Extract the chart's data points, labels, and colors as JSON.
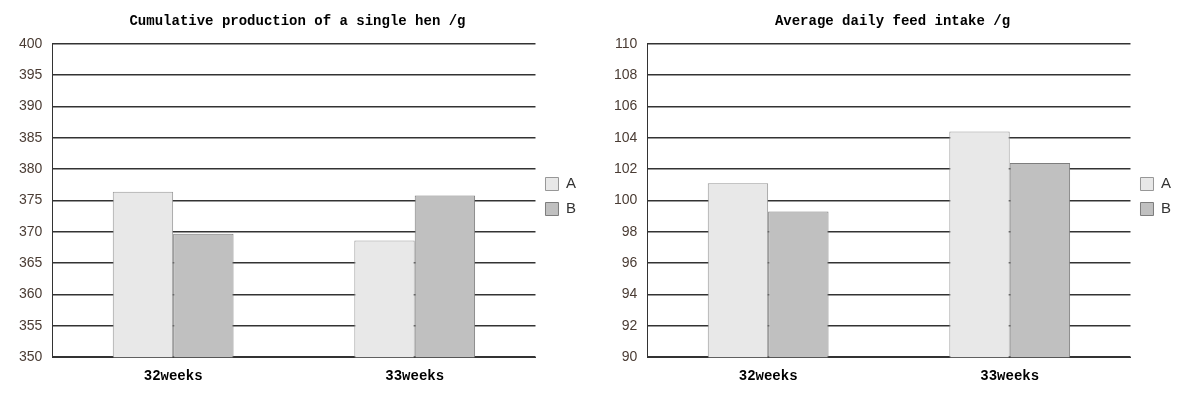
{
  "chart_data": [
    {
      "type": "bar",
      "title": "Cumulative production of a single hen /g",
      "categories": [
        "32weeks",
        "33weeks"
      ],
      "series": [
        {
          "name": "A",
          "color": "#e8e8e8",
          "values": [
            376.4,
            368.6
          ]
        },
        {
          "name": "B",
          "color": "#c0c0c0",
          "values": [
            369.7,
            375.8
          ]
        }
      ],
      "ylim": [
        350,
        400
      ],
      "yticks": [
        350,
        355,
        360,
        365,
        370,
        375,
        380,
        385,
        390,
        395,
        400
      ],
      "grid": "y",
      "legend": "right"
    },
    {
      "type": "bar",
      "title": "Average daily feed intake /g",
      "categories": [
        "32weeks",
        "33weeks"
      ],
      "series": [
        {
          "name": "A",
          "color": "#e8e8e8",
          "values": [
            101.1,
            104.4
          ]
        },
        {
          "name": "B",
          "color": "#c0c0c0",
          "values": [
            99.3,
            102.4
          ]
        }
      ],
      "ylim": [
        90,
        110
      ],
      "yticks": [
        90,
        92,
        94,
        96,
        98,
        100,
        102,
        104,
        106,
        108,
        110
      ],
      "grid": "y",
      "legend": "right"
    }
  ]
}
